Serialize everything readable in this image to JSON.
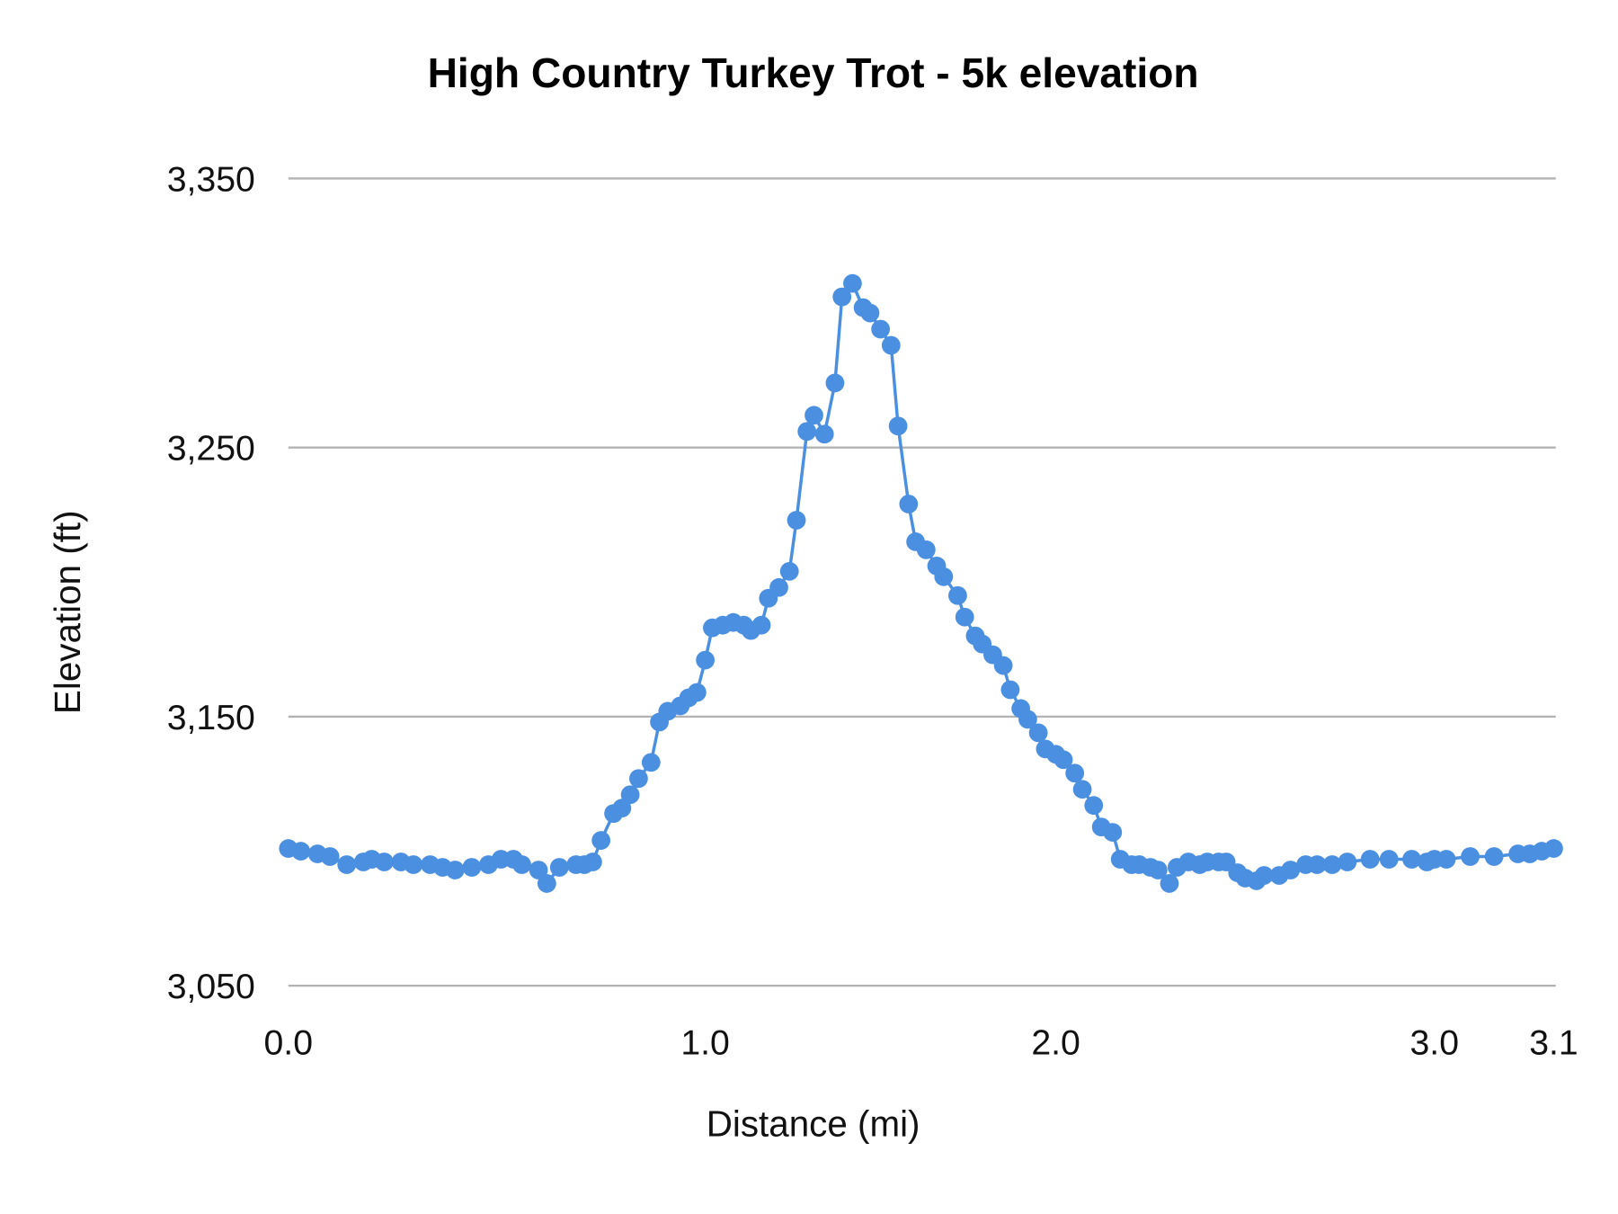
{
  "chart_data": {
    "type": "line",
    "title": "High Country Turkey Trot - 5k elevation",
    "xlabel": "Distance (mi)",
    "ylabel": "Elevation (ft)",
    "ylim": [
      3050,
      3350
    ],
    "y_ticks": [
      "3,050",
      "3,150",
      "3,250",
      "3,350"
    ],
    "y_tick_values": [
      3050,
      3150,
      3250,
      3350
    ],
    "x_ticks": [
      "0.0",
      "1.0",
      "2.0",
      "3.0",
      "3.1"
    ],
    "x_tick_values": [
      0,
      1.0,
      2.0,
      3.0,
      3.1
    ],
    "grid": "horizontal",
    "legend": "none",
    "markers": true,
    "color": "#4a8fe0",
    "series": [
      {
        "x": [
          0.0,
          0.03,
          0.07,
          0.1,
          0.14,
          0.18,
          0.2,
          0.23,
          0.27,
          0.3,
          0.34,
          0.37,
          0.4,
          0.44,
          0.48,
          0.51,
          0.54,
          0.56,
          0.6,
          0.62,
          0.65,
          0.69,
          0.71,
          0.73,
          0.75,
          0.78,
          0.8,
          0.82,
          0.84,
          0.87,
          0.89,
          0.91,
          0.94,
          0.96,
          0.98,
          1.0,
          1.02,
          1.05,
          1.08,
          1.11,
          1.13,
          1.16,
          1.18,
          1.21,
          1.24,
          1.26,
          1.29,
          1.31,
          1.34,
          1.37,
          1.39,
          1.42,
          1.45,
          1.47,
          1.5,
          1.53,
          1.55,
          1.58,
          1.6,
          1.63,
          1.66,
          1.68,
          1.72,
          1.74,
          1.77,
          1.79,
          1.82,
          1.85,
          1.87,
          1.9,
          1.92,
          1.95,
          1.97,
          2.0,
          2.02,
          2.05,
          2.07,
          2.1,
          2.12,
          2.15,
          2.17,
          2.2,
          2.22,
          2.25,
          2.27,
          2.3,
          2.32,
          2.35,
          2.38,
          2.4,
          2.43,
          2.45,
          2.48,
          2.5,
          2.53,
          2.55,
          2.59,
          2.62,
          2.66,
          2.69,
          2.73,
          2.77,
          2.83,
          2.88,
          2.94,
          2.98,
          3.0,
          3.01,
          3.03,
          3.05,
          3.07,
          3.08,
          3.09,
          3.1
        ],
        "y": [
          3101,
          3100,
          3099,
          3098,
          3095,
          3096,
          3097,
          3096,
          3096,
          3095,
          3095,
          3094,
          3093,
          3094,
          3095,
          3097,
          3097,
          3095,
          3093,
          3088,
          3094,
          3095,
          3095,
          3096,
          3104,
          3114,
          3116,
          3121,
          3127,
          3133,
          3148,
          3152,
          3154,
          3157,
          3159,
          3171,
          3183,
          3184,
          3185,
          3184,
          3182,
          3184,
          3194,
          3198,
          3204,
          3223,
          3256,
          3262,
          3255,
          3274,
          3306,
          3311,
          3302,
          3300,
          3294,
          3288,
          3258,
          3229,
          3215,
          3212,
          3206,
          3202,
          3195,
          3187,
          3180,
          3177,
          3173,
          3169,
          3160,
          3153,
          3149,
          3144,
          3138,
          3136,
          3134,
          3129,
          3123,
          3117,
          3109,
          3107,
          3097,
          3095,
          3095,
          3094,
          3093,
          3088,
          3094,
          3096,
          3095,
          3096,
          3096,
          3096,
          3092,
          3090,
          3089,
          3091,
          3091,
          3093,
          3095,
          3095,
          3095,
          3096,
          3097,
          3097,
          3097,
          3096,
          3097,
          3097,
          3098,
          3098,
          3099,
          3099,
          3100,
          3101
        ]
      }
    ]
  }
}
